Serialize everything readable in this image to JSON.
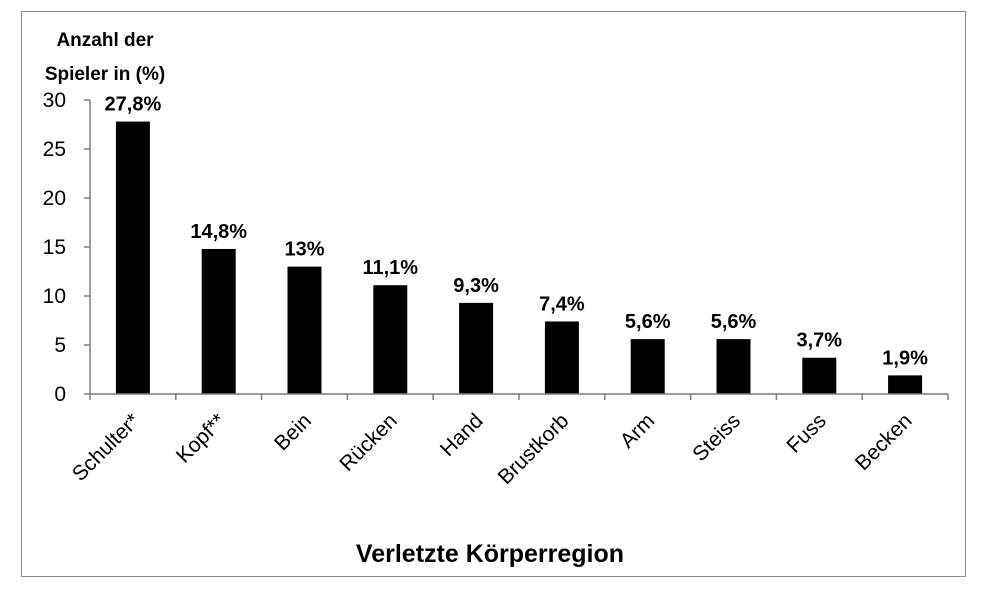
{
  "chart_data": {
    "type": "bar",
    "ylabel_lines": [
      "Anzahl der",
      "Spieler in (%)"
    ],
    "xlabel": "Verletzte Körperregion",
    "categories": [
      "Schulter*",
      "Kopf**",
      "Bein",
      "Rücken",
      "Hand",
      "Brustkorb",
      "Arm",
      "Steiss",
      "Fuss",
      "Becken"
    ],
    "values": [
      27.8,
      14.8,
      13,
      11.1,
      9.3,
      7.4,
      5.6,
      5.6,
      3.7,
      1.9
    ],
    "data_labels": [
      "27,8%",
      "14,8%",
      "13%",
      "11,1%",
      "9,3%",
      "7,4%",
      "5,6%",
      "5,6%",
      "3,7%",
      "1,9%"
    ],
    "yticks": [
      "0",
      "5",
      "10",
      "15",
      "20",
      "25",
      "30"
    ],
    "ylim": [
      0,
      30
    ],
    "bar_color": "#000000",
    "grid": false,
    "legend": false
  }
}
